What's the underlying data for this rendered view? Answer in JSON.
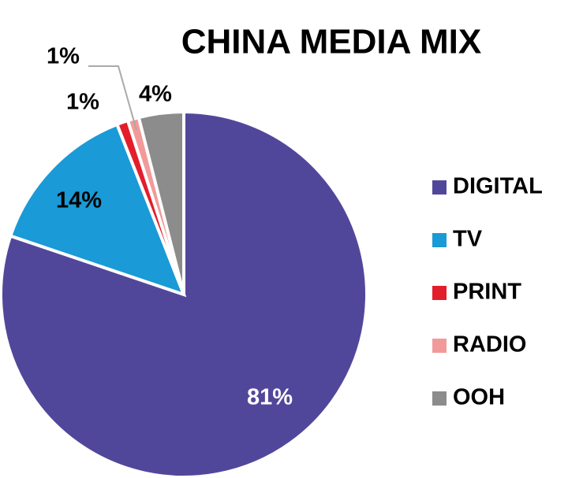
{
  "chart_data": {
    "type": "pie",
    "title": "CHINA MEDIA MIX",
    "categories": [
      "DIGITAL",
      "TV",
      "PRINT",
      "RADIO",
      "OOH"
    ],
    "values": [
      81,
      14,
      1,
      1,
      4
    ],
    "value_labels": [
      "81%",
      "14%",
      "1%",
      "1%",
      "4%"
    ],
    "colors": [
      "#51479a",
      "#1a9ad6",
      "#e31e2b",
      "#f29a9a",
      "#8c8c8c"
    ],
    "legend": "right"
  }
}
